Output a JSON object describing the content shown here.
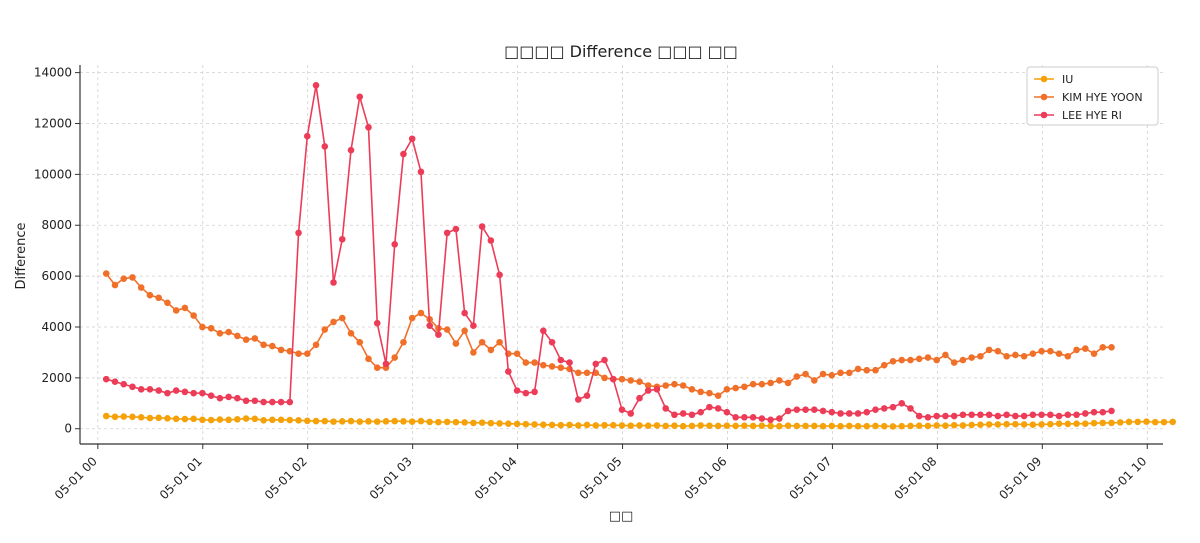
{
  "chart_data": {
    "type": "line",
    "title": "□□□□ Difference □□□ □□",
    "xlabel": "□□",
    "ylabel": "Difference",
    "ylim": [
      -600,
      14300
    ],
    "xlim": [
      -0.17,
      10.15
    ],
    "grid": true,
    "legend_position": "top-right",
    "yticks": [
      0,
      2000,
      4000,
      6000,
      8000,
      10000,
      12000,
      14000
    ],
    "ytick_labels": [
      "0",
      "2000",
      "4000",
      "6000",
      "8000",
      "10000",
      "12000",
      "14000"
    ],
    "xticks": [
      0,
      1,
      2,
      3,
      4,
      5,
      6,
      7,
      8,
      9,
      10
    ],
    "xtick_labels": [
      "05-01 00",
      "05-01 01",
      "05-01 02",
      "05-01 03",
      "05-01 04",
      "05-01 05",
      "05-01 06",
      "05-01 07",
      "05-01 08",
      "05-01 09",
      "05-01 10"
    ],
    "x_start": 0.08,
    "x_step": 0.0833,
    "series": [
      {
        "name": "IU",
        "color": "#f5a20a",
        "values": [
          500,
          470,
          480,
          470,
          450,
          420,
          430,
          410,
          390,
          380,
          390,
          350,
          340,
          360,
          350,
          370,
          400,
          390,
          330,
          350,
          350,
          340,
          330,
          310,
          300,
          300,
          280,
          290,
          300,
          280,
          290,
          280,
          290,
          300,
          290,
          280,
          300,
          270,
          260,
          270,
          260,
          250,
          230,
          240,
          220,
          210,
          200,
          190,
          180,
          170,
          160,
          150,
          140,
          150,
          130,
          150,
          130,
          140,
          140,
          130,
          120,
          130,
          120,
          130,
          110,
          120,
          100,
          110,
          130,
          120,
          110,
          120,
          110,
          120,
          110,
          120,
          110,
          100,
          120,
          110,
          110,
          110,
          100,
          110,
          100,
          110,
          100,
          100,
          110,
          100,
          90,
          100,
          110,
          120,
          110,
          130,
          120,
          140,
          130,
          150,
          160,
          170,
          170,
          180,
          180,
          170,
          160,
          170,
          180,
          200,
          190,
          200,
          200,
          220,
          230,
          230,
          250,
          270,
          270,
          280,
          260,
          260,
          270
        ]
      },
      {
        "name": "KIM HYE YOON",
        "color": "#f0702a",
        "values": [
          6100,
          5650,
          5900,
          5950,
          5550,
          5250,
          5150,
          4950,
          4650,
          4750,
          4450,
          4000,
          3950,
          3750,
          3800,
          3650,
          3500,
          3550,
          3300,
          3250,
          3100,
          3050,
          2950,
          2950,
          3300,
          3900,
          4200,
          4350,
          3750,
          3400,
          2750,
          2400,
          2400,
          2800,
          3400,
          4350,
          4550,
          4300,
          3950,
          3900,
          3350,
          3850,
          3000,
          3400,
          3100,
          3400,
          2950,
          2950,
          2600,
          2600,
          2500,
          2450,
          2400,
          2350,
          2200,
          2200,
          2200,
          2000,
          1950,
          1950,
          1900,
          1850,
          1700,
          1650,
          1700,
          1750,
          1700,
          1550,
          1450,
          1400,
          1300,
          1550,
          1600,
          1650,
          1750,
          1750,
          1800,
          1900,
          1800,
          2050,
          2150,
          1900,
          2150,
          2100,
          2200,
          2200,
          2350,
          2300,
          2300,
          2500,
          2650,
          2700,
          2700,
          2750,
          2800,
          2700,
          2900,
          2600,
          2700,
          2800,
          2850,
          3100,
          3050,
          2850,
          2900,
          2850,
          2950,
          3050,
          3050,
          2950,
          2850,
          3100,
          3150,
          2950,
          3200,
          3200
        ]
      },
      {
        "name": "LEE HYE RI",
        "color": "#ec3c58",
        "values": [
          1950,
          1850,
          1750,
          1650,
          1550,
          1550,
          1500,
          1400,
          1500,
          1450,
          1400,
          1400,
          1300,
          1200,
          1250,
          1200,
          1100,
          1100,
          1050,
          1050,
          1050,
          1050,
          7700,
          11500,
          13500,
          11100,
          5750,
          7450,
          10950,
          13050,
          11850,
          4150,
          2550,
          7250,
          10800,
          11400,
          10100,
          4050,
          3700,
          7700,
          7850,
          4550,
          4050,
          7950,
          7400,
          6050,
          2250,
          1500,
          1400,
          1450,
          3850,
          3400,
          2700,
          2600,
          1150,
          1300,
          2550,
          2700,
          1950,
          750,
          600,
          1200,
          1500,
          1550,
          800,
          550,
          600,
          550,
          650,
          850,
          800,
          650,
          450,
          450,
          450,
          400,
          350,
          400,
          700,
          750,
          750,
          750,
          700,
          650,
          600,
          600,
          600,
          650,
          750,
          800,
          850,
          1000,
          800,
          500,
          450,
          500,
          500,
          500,
          550,
          550,
          550,
          550,
          500,
          550,
          500,
          500,
          550,
          550,
          550,
          500,
          550,
          550,
          600,
          650,
          650,
          700
        ]
      }
    ]
  }
}
